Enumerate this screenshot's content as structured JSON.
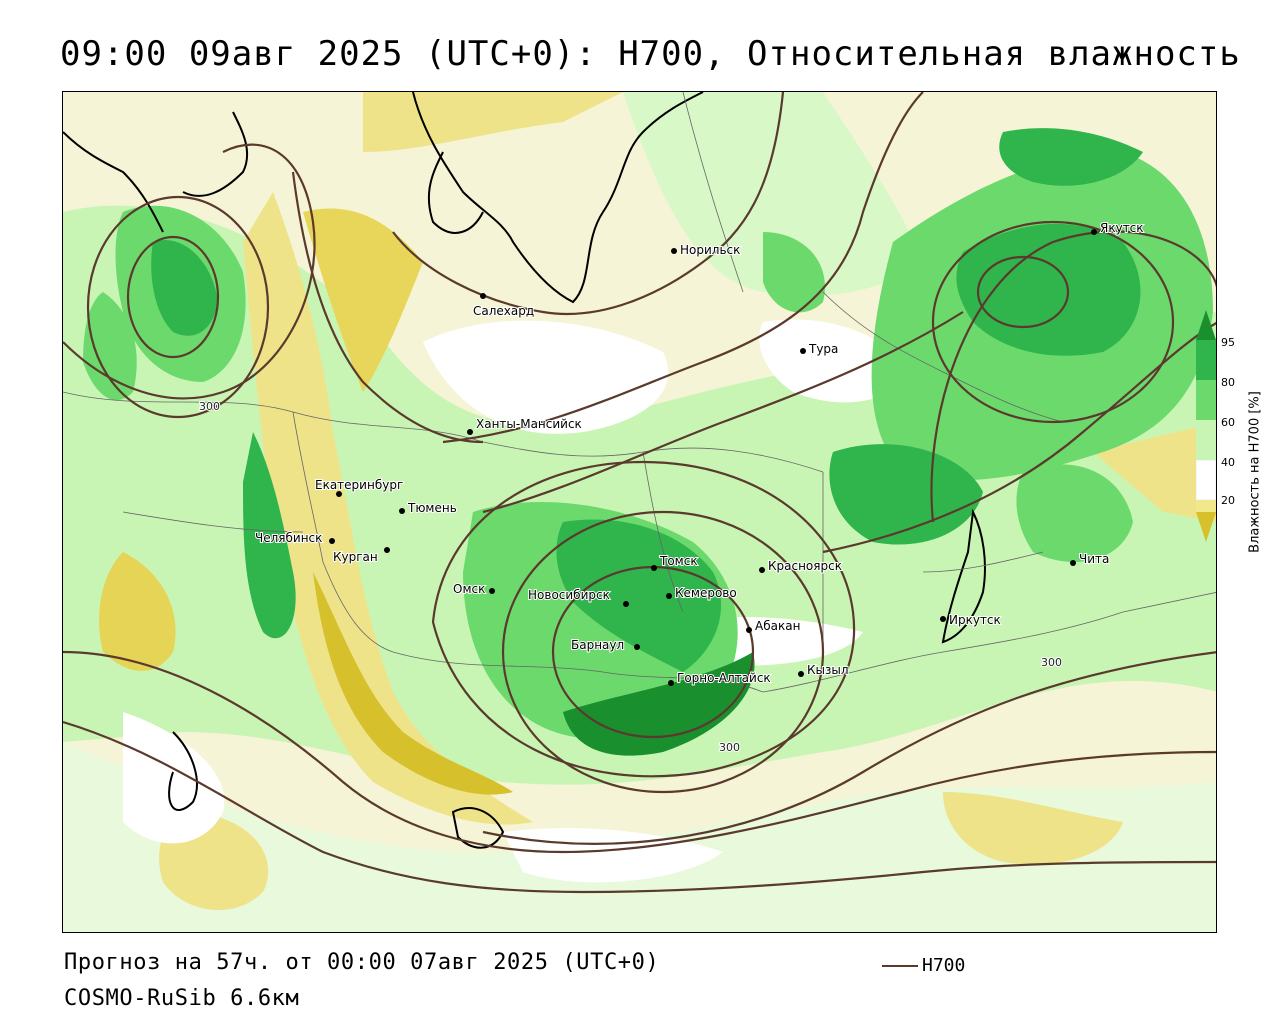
{
  "title": "09:00 09авг 2025 (UTC+0): H700, Относительная влажность",
  "footer": {
    "forecast": "Прогноз на 57ч. от 00:00 07авг 2025 (UTC+0)",
    "model": "COSMO-RuSib 6.6км"
  },
  "legend": {
    "h700_label": "H700",
    "h700_color": "#5b3a2e"
  },
  "colorbar": {
    "title": "Влажность на H700 [%]",
    "ticks": [
      "95",
      "80",
      "60",
      "40",
      "20"
    ],
    "colors": {
      "dry_dark": "#d6c02c",
      "dry": "#f0e88a",
      "neutral": "#ffffff",
      "moist_light": "#c8f5b4",
      "moist": "#6cd96c",
      "moist_strong": "#2fb54b",
      "saturated": "#1a8f2e"
    }
  },
  "contour_labels": [
    "300",
    "300",
    "300"
  ],
  "cities": [
    {
      "name": "Норильск"
    },
    {
      "name": "Салехард"
    },
    {
      "name": "Тура"
    },
    {
      "name": "Якутск"
    },
    {
      "name": "Ханты-Мансийск"
    },
    {
      "name": "Екатеринбург"
    },
    {
      "name": "Тюмень"
    },
    {
      "name": "Челябинск"
    },
    {
      "name": "Курган"
    },
    {
      "name": "Омск"
    },
    {
      "name": "Томск"
    },
    {
      "name": "Новосибирск"
    },
    {
      "name": "Кемерово"
    },
    {
      "name": "Красноярск"
    },
    {
      "name": "Абакан"
    },
    {
      "name": "Барнаул"
    },
    {
      "name": "Горно-Алтайск"
    },
    {
      "name": "Кызыл"
    },
    {
      "name": "Иркутск"
    },
    {
      "name": "Чита"
    }
  ]
}
